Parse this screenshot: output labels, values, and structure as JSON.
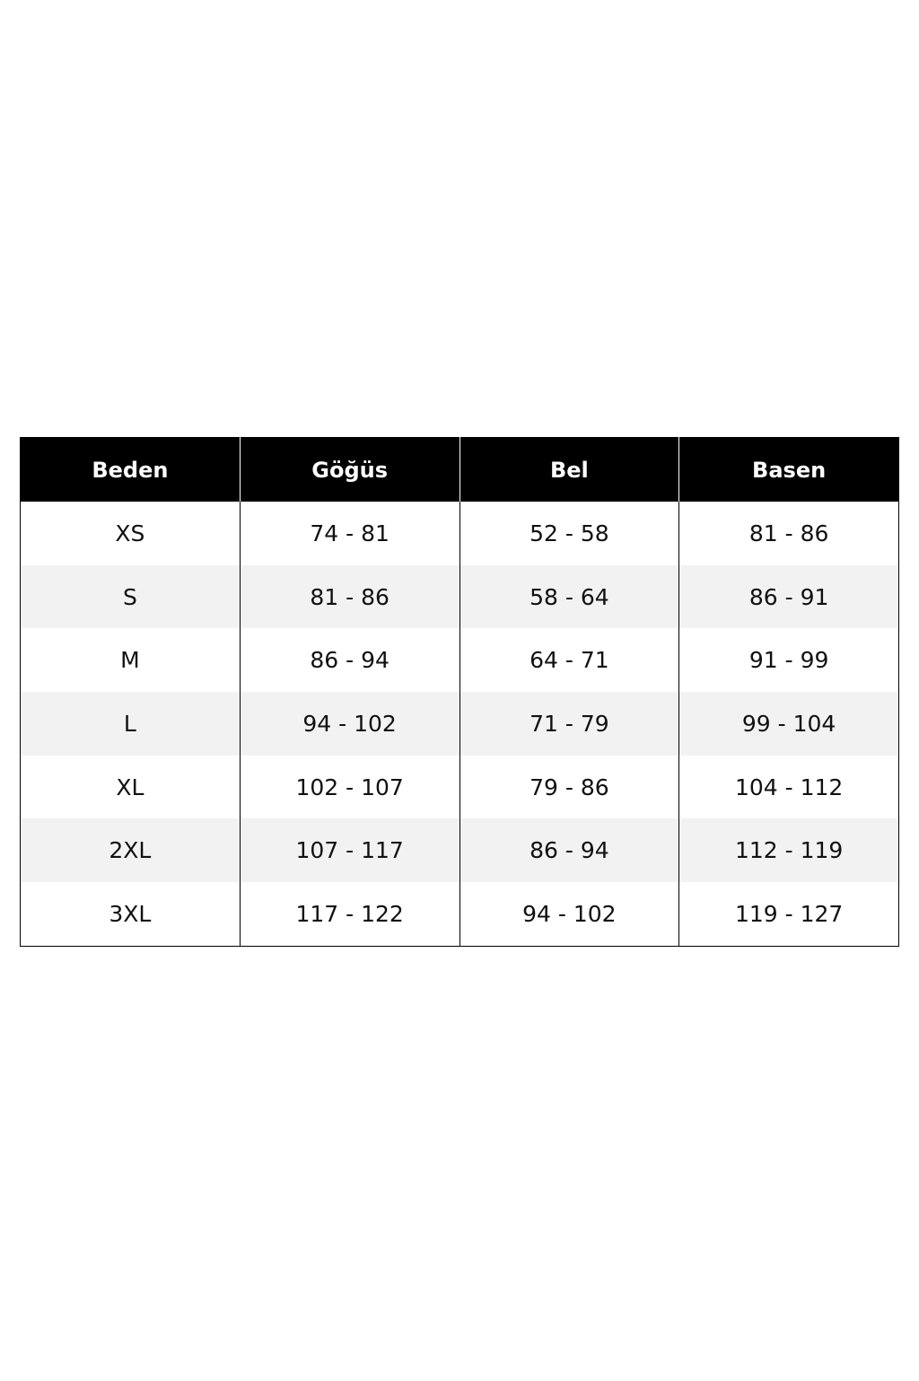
{
  "table": {
    "headers": [
      "Beden",
      "Göğüs",
      "Bel",
      "Basen"
    ],
    "rows": [
      [
        "XS",
        "74 - 81",
        "52 - 58",
        "81 - 86"
      ],
      [
        "S",
        "81 - 86",
        "58 - 64",
        "86 - 91"
      ],
      [
        "M",
        "86 - 94",
        "64 - 71",
        "91 - 99"
      ],
      [
        "L",
        "94 - 102",
        "71 - 79",
        "99 - 104"
      ],
      [
        "XL",
        "102 - 107",
        "79 - 86",
        "104 - 112"
      ],
      [
        "2XL",
        "107 - 117",
        "86 - 94",
        "112 - 119"
      ],
      [
        "3XL",
        "117 - 122",
        "94 - 102",
        "119 - 127"
      ]
    ]
  },
  "colors": {
    "header_bg": "#000000",
    "header_text": "#ffffff",
    "stripe": "#f2f2f2"
  }
}
